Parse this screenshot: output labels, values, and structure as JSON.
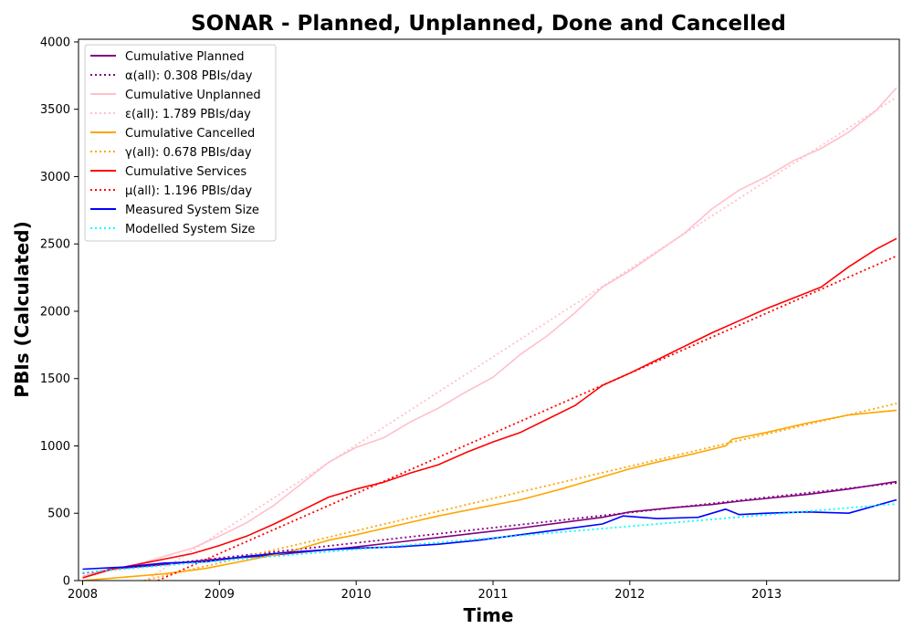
{
  "chart_data": {
    "type": "line",
    "title": "SONAR - Planned, Unplanned, Done  and Cancelled",
    "xlabel": "Time",
    "ylabel": "PBIs (Calculated)",
    "xlim": [
      2007.97,
      2013.97
    ],
    "ylim": [
      0,
      4020
    ],
    "xticks": [
      2008,
      2009,
      2010,
      2011,
      2012,
      2013
    ],
    "xtick_labels": [
      "2008",
      "2009",
      "2010",
      "2011",
      "2012",
      "2013"
    ],
    "yticks": [
      0,
      500,
      1000,
      1500,
      2000,
      2500,
      3000,
      3500,
      4000
    ],
    "ytick_labels": [
      "0",
      "500",
      "1000",
      "1500",
      "2000",
      "2500",
      "3000",
      "3500",
      "4000"
    ],
    "grid": false,
    "legend_position": "top-left",
    "series": [
      {
        "name": "Cumulative Planned",
        "style": "solid",
        "color": "#800080",
        "x": [
          2008.0,
          2008.2,
          2008.5,
          2008.8,
          2009.0,
          2009.3,
          2009.6,
          2010.0,
          2010.3,
          2010.6,
          2010.9,
          2011.2,
          2011.5,
          2011.8,
          2012.0,
          2012.3,
          2012.6,
          2012.8,
          2013.0,
          2013.3,
          2013.6,
          2013.95
        ],
        "y": [
          30,
          85,
          110,
          140,
          160,
          180,
          210,
          250,
          285,
          320,
          355,
          390,
          430,
          470,
          510,
          540,
          565,
          590,
          610,
          640,
          680,
          735
        ]
      },
      {
        "name": "α(all): 0.308 PBIs/day",
        "style": "dotted",
        "color": "#800080",
        "x": [
          2008.0,
          2013.95
        ],
        "y": [
          55,
          725
        ]
      },
      {
        "name": "Cumulative Unplanned",
        "style": "solid",
        "color": "#ffc0cb",
        "x": [
          2008.0,
          2008.2,
          2008.4,
          2008.6,
          2008.8,
          2009.0,
          2009.2,
          2009.4,
          2009.6,
          2009.8,
          2010.0,
          2010.2,
          2010.4,
          2010.6,
          2010.8,
          2011.0,
          2011.2,
          2011.4,
          2011.6,
          2011.8,
          2012.0,
          2012.2,
          2012.4,
          2012.6,
          2012.8,
          2013.0,
          2013.2,
          2013.4,
          2013.6,
          2013.8,
          2013.95
        ],
        "y": [
          30,
          80,
          120,
          180,
          240,
          330,
          430,
          560,
          720,
          880,
          990,
          1060,
          1180,
          1280,
          1400,
          1510,
          1680,
          1820,
          1990,
          2180,
          2300,
          2440,
          2580,
          2760,
          2900,
          3000,
          3120,
          3210,
          3330,
          3490,
          3660
        ]
      },
      {
        "name": "ε(all): 1.789 PBIs/day",
        "style": "dotted",
        "color": "#ffc0cb",
        "x": [
          2008.0,
          2013.95
        ],
        "y": [
          -300,
          3590
        ]
      },
      {
        "name": "Cumulative Cancelled",
        "style": "solid",
        "color": "#ffa500",
        "x": [
          2008.0,
          2008.3,
          2008.6,
          2008.9,
          2009.2,
          2009.5,
          2009.8,
          2010.0,
          2010.3,
          2010.6,
          2010.9,
          2011.2,
          2011.5,
          2011.8,
          2012.0,
          2012.2,
          2012.5,
          2012.7,
          2012.75,
          2013.0,
          2013.3,
          2013.6,
          2013.95
        ],
        "y": [
          0,
          25,
          50,
          90,
          150,
          210,
          300,
          340,
          410,
          480,
          540,
          600,
          680,
          770,
          830,
          880,
          950,
          1000,
          1050,
          1100,
          1170,
          1230,
          1265
        ]
      },
      {
        "name": "γ(all): 0.678 PBIs/day",
        "style": "dotted",
        "color": "#ffa500",
        "x": [
          2008.45,
          2013.95
        ],
        "y": [
          0,
          1315
        ]
      },
      {
        "name": "Cumulative Services",
        "style": "solid",
        "color": "#ff0000",
        "x": [
          2008.0,
          2008.2,
          2008.4,
          2008.6,
          2008.8,
          2009.0,
          2009.2,
          2009.4,
          2009.6,
          2009.8,
          2010.0,
          2010.2,
          2010.4,
          2010.6,
          2010.8,
          2011.0,
          2011.2,
          2011.4,
          2011.6,
          2011.8,
          2012.0,
          2012.2,
          2012.4,
          2012.6,
          2012.8,
          2013.0,
          2013.2,
          2013.4,
          2013.6,
          2013.8,
          2013.95
        ],
        "y": [
          20,
          80,
          120,
          160,
          200,
          260,
          330,
          420,
          520,
          620,
          680,
          730,
          800,
          860,
          950,
          1030,
          1100,
          1200,
          1300,
          1450,
          1540,
          1640,
          1740,
          1840,
          1930,
          2020,
          2100,
          2180,
          2330,
          2460,
          2540
        ]
      },
      {
        "name": "μ(all): 1.196 PBIs/day",
        "style": "dotted",
        "color": "#ff0000",
        "x": [
          2008.55,
          2013.95
        ],
        "y": [
          0,
          2410
        ]
      },
      {
        "name": "Measured System Size",
        "style": "solid",
        "color": "#0000ff",
        "x": [
          2008.0,
          2008.3,
          2008.6,
          2008.9,
          2009.2,
          2009.5,
          2009.8,
          2010.0,
          2010.3,
          2010.6,
          2010.9,
          2011.2,
          2011.5,
          2011.8,
          2011.95,
          2012.2,
          2012.5,
          2012.7,
          2012.8,
          2013.0,
          2013.3,
          2013.6,
          2013.95
        ],
        "y": [
          85,
          100,
          130,
          140,
          180,
          210,
          230,
          240,
          250,
          270,
          300,
          340,
          380,
          420,
          480,
          460,
          470,
          530,
          490,
          500,
          510,
          500,
          600
        ]
      },
      {
        "name": "Modelled System Size",
        "style": "dotted",
        "color": "#00ffff",
        "x": [
          2008.0,
          2013.95
        ],
        "y": [
          60,
          570
        ]
      }
    ]
  }
}
